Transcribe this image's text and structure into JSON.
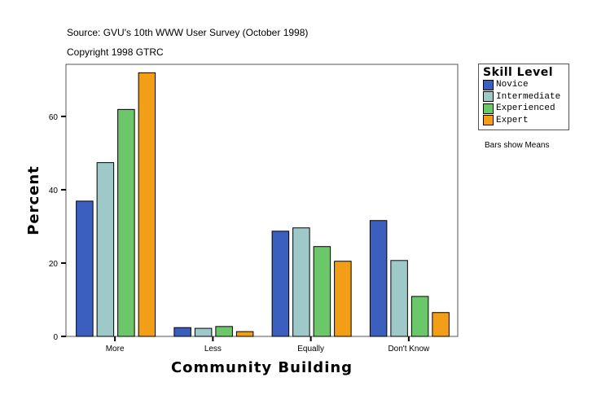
{
  "header": {
    "source": "Source: GVU's 10th WWW User Survey (October 1998)",
    "copyright": "Copyright 1998 GTRC"
  },
  "note": "Bars show Means",
  "chart_data": {
    "type": "bar",
    "xlabel": "Community Building",
    "ylabel": "Percent",
    "categories": [
      "More",
      "Less",
      "Equally",
      "Don't Know"
    ],
    "ylim": [
      0,
      74.2
    ],
    "yticks": [
      0,
      20,
      40,
      60
    ],
    "legend_title": "Skill Level",
    "legend_placement": "right",
    "grid": false,
    "series": [
      {
        "name": "Novice",
        "color": "#3a5fbf",
        "values": [
          36.9,
          2.4,
          28.7,
          31.6
        ]
      },
      {
        "name": "Intermediate",
        "color": "#9fc8c8",
        "values": [
          47.4,
          2.2,
          29.6,
          20.7
        ]
      },
      {
        "name": "Experienced",
        "color": "#6cc76a",
        "values": [
          61.9,
          2.7,
          24.5,
          10.9
        ]
      },
      {
        "name": "Expert",
        "color": "#f29e16",
        "values": [
          71.9,
          1.3,
          20.5,
          6.5
        ]
      }
    ]
  }
}
